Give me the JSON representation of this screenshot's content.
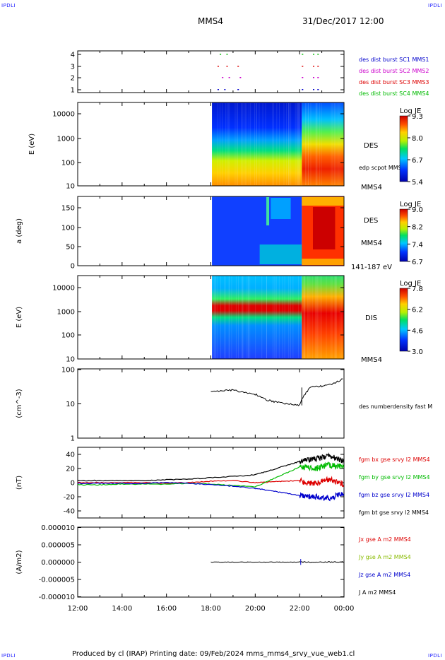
{
  "corners": {
    "tl": "IPDLI",
    "tr": "IPDLI",
    "bl": "IPDLI",
    "br": "IPDLI"
  },
  "header": {
    "spacecraft": "MMS4",
    "datetime": "31/Dec/2017 12:00"
  },
  "footer": {
    "text": "Produced by cl (IRAP)   Printing date: 09/Feb/2024   mms_mms4_srvy_vue_web1.cl"
  },
  "x_ticks": [
    "12:00",
    "14:00",
    "16:00",
    "18:00",
    "20:00",
    "22:00",
    "00:00"
  ],
  "panels": {
    "burst": {
      "yticks": [
        "4",
        "3",
        "2",
        "1"
      ],
      "labels": [
        {
          "text": "des dist burst SC1 MMS1",
          "color": "#0000cc"
        },
        {
          "text": "des dist burst SC2 MMS2",
          "color": "#cc00cc"
        },
        {
          "text": "des dist burst SC3 MMS3",
          "color": "#dd0000"
        },
        {
          "text": "des dist burst SC4 MMS4",
          "color": "#00bb00"
        }
      ]
    },
    "des_e": {
      "ylabel": "E (eV)",
      "yticks": [
        "10000",
        "1000",
        "100",
        "10"
      ],
      "right": [
        "DES",
        "edp scpot MMS4",
        "MMS4"
      ],
      "cbar": {
        "title": "Log JE",
        "ticks": [
          "9.3",
          "8.0",
          "6.7",
          "5.4"
        ]
      }
    },
    "des_pa": {
      "ylabel": "a (deg)",
      "yticks": [
        "150",
        "100",
        "50",
        "0"
      ],
      "right": [
        "DES",
        "MMS4",
        "141-187 eV"
      ],
      "cbar": {
        "title": "Log JE",
        "ticks": [
          "9.0",
          "8.2",
          "7.4",
          "6.7"
        ]
      }
    },
    "dis_e": {
      "ylabel": "E (eV)",
      "yticks": [
        "10000",
        "1000",
        "100",
        "10"
      ],
      "right": [
        "DIS",
        "MMS4"
      ],
      "cbar": {
        "title": "Log JE",
        "ticks": [
          "7.8",
          "6.2",
          "4.6",
          "3.0"
        ]
      }
    },
    "dens": {
      "ylabel": "(cm^-3)",
      "yticks": [
        "100",
        "10",
        "1"
      ],
      "right": [
        "des numberdensity fast M"
      ]
    },
    "bfield": {
      "ylabel": "(nT)",
      "yticks": [
        "40",
        "20",
        "0",
        "-20",
        "-40"
      ],
      "labels": [
        {
          "text": "fgm bx gse srvy l2 MMS4",
          "color": "#dd0000"
        },
        {
          "text": "fgm by gse srvy l2 MMS4",
          "color": "#00bb00"
        },
        {
          "text": "fgm bz gse srvy l2 MMS4",
          "color": "#0000cc"
        },
        {
          "text": "fgm bt gse srvy l2 MMS4",
          "color": "#000000"
        }
      ]
    },
    "current": {
      "ylabel": "(A/m2)",
      "yticks": [
        "0.000010",
        "0.000005",
        "0.000000",
        "-0.000005",
        "-0.000010"
      ],
      "labels": [
        {
          "text": "Jx gse A m2 MMS4",
          "color": "#dd0000"
        },
        {
          "text": "Jy gse A m2 MMS4",
          "color": "#88bb00"
        },
        {
          "text": "Jz gse A m2 MMS4",
          "color": "#0000cc"
        },
        {
          "text": "J A m2 MMS4",
          "color": "#000000"
        }
      ]
    }
  },
  "chart_data": {
    "type": "line",
    "x_range": [
      "12:00",
      "00:00"
    ],
    "density_series": {
      "name": "des numberdensity fast M",
      "x": [
        "18:00",
        "18:30",
        "19:00",
        "19:30",
        "20:00",
        "20:30",
        "21:00",
        "21:30",
        "22:00",
        "22:30",
        "23:00",
        "23:30",
        "00:00"
      ],
      "values": [
        22,
        24,
        25,
        21,
        19,
        13,
        11,
        10,
        9,
        30,
        33,
        38,
        55
      ],
      "ylim": [
        1,
        100
      ],
      "scale": "log"
    },
    "bfield_series": [
      {
        "name": "fgm bx gse srvy l2 MMS4",
        "values": [
          0,
          0,
          0,
          0,
          -1,
          0,
          2,
          3,
          0,
          3,
          -2,
          5,
          -3
        ]
      },
      {
        "name": "fgm by gse srvy l2 MMS4",
        "values": [
          -3,
          -3,
          -2,
          -2,
          -2,
          -1,
          -2,
          -4,
          -6,
          22,
          20,
          25,
          22
        ]
      },
      {
        "name": "fgm bz gse srvy l2 MMS4",
        "values": [
          -1,
          -1,
          -1,
          -1,
          0,
          -1,
          -3,
          -5,
          -8,
          -18,
          -20,
          -22,
          -15
        ]
      },
      {
        "name": "fgm bt gse srvy l2 MMS4",
        "values": [
          3,
          3,
          3,
          3,
          4,
          5,
          7,
          9,
          11,
          30,
          33,
          38,
          30
        ]
      }
    ],
    "bfield_x": [
      "12:00",
      "13:00",
      "14:00",
      "15:00",
      "16:00",
      "17:00",
      "18:00",
      "19:00",
      "20:00",
      "22:00",
      "22:40",
      "23:20",
      "00:00"
    ],
    "bfield_ylim": [
      -50,
      50
    ],
    "current_ylim": [
      -1e-05,
      1e-05
    ]
  }
}
